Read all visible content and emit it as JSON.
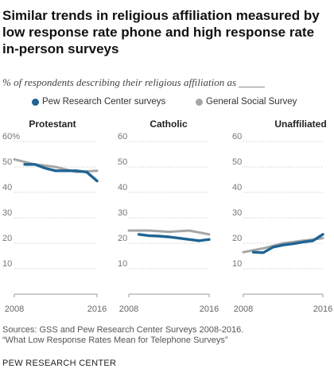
{
  "title": "Similar trends in religious affiliation measured by low response rate phone and high response rate in-person surveys",
  "subtitle": "% of respondents describing their religious affiliation as _____",
  "legend": [
    {
      "name": "Pew Research Center surveys",
      "color": "#1f6493"
    },
    {
      "name": "General Social Survey",
      "color": "#a6a6a6"
    }
  ],
  "footer": {
    "sources": "Sources: GSS and Pew Research Center Surveys 2008-2016.",
    "report": "“What Low Response Rates Mean for Telephone Surveys”",
    "brand": "PEW RESEARCH CENTER"
  },
  "chart_data": [
    {
      "type": "line",
      "title": "Protestant",
      "xlim": [
        2008,
        2016
      ],
      "ylim": [
        0,
        60
      ],
      "x_ticks": [
        "2008",
        "2016"
      ],
      "y_ticks": [
        "60%",
        "50",
        "40",
        "30",
        "20",
        "10"
      ],
      "series": [
        {
          "name": "General Social Survey",
          "color": "#a6a6a6",
          "x": [
            2008,
            2010,
            2012,
            2014,
            2016
          ],
          "y": [
            53,
            51,
            50,
            48,
            48.5
          ]
        },
        {
          "name": "Pew Research Center surveys",
          "color": "#1f6493",
          "x": [
            2009,
            2010,
            2011,
            2012,
            2013,
            2014,
            2015,
            2016
          ],
          "y": [
            51,
            51,
            49.5,
            48.5,
            48.5,
            48.5,
            48,
            44.5
          ]
        }
      ]
    },
    {
      "type": "line",
      "title": "Catholic",
      "xlim": [
        2008,
        2016
      ],
      "ylim": [
        0,
        60
      ],
      "x_ticks": [
        "2008",
        "2016"
      ],
      "y_ticks": [
        "60",
        "50",
        "40",
        "30",
        "20",
        "10"
      ],
      "series": [
        {
          "name": "General Social Survey",
          "color": "#a6a6a6",
          "x": [
            2008,
            2010,
            2012,
            2014,
            2016
          ],
          "y": [
            25,
            25,
            24.5,
            25,
            23.5
          ]
        },
        {
          "name": "Pew Research Center surveys",
          "color": "#1f6493",
          "x": [
            2009,
            2010,
            2011,
            2012,
            2013,
            2014,
            2015,
            2016
          ],
          "y": [
            23.5,
            23,
            22.8,
            22.5,
            22,
            21.5,
            21,
            21.5
          ]
        }
      ]
    },
    {
      "type": "line",
      "title": "Unaffiliated",
      "xlim": [
        2008,
        2016
      ],
      "ylim": [
        0,
        60
      ],
      "x_ticks": [
        "2008",
        "2016"
      ],
      "y_ticks": [
        "60",
        "50",
        "40",
        "30",
        "20",
        "10"
      ],
      "series": [
        {
          "name": "General Social Survey",
          "color": "#a6a6a6",
          "x": [
            2008,
            2010,
            2012,
            2014,
            2016
          ],
          "y": [
            16.5,
            18,
            20,
            21,
            22
          ]
        },
        {
          "name": "Pew Research Center surveys",
          "color": "#1f6493",
          "x": [
            2009,
            2010,
            2011,
            2012,
            2013,
            2014,
            2015,
            2016
          ],
          "y": [
            16.5,
            16.3,
            18.5,
            19.3,
            19.8,
            20.5,
            21,
            23.5
          ]
        }
      ]
    }
  ]
}
